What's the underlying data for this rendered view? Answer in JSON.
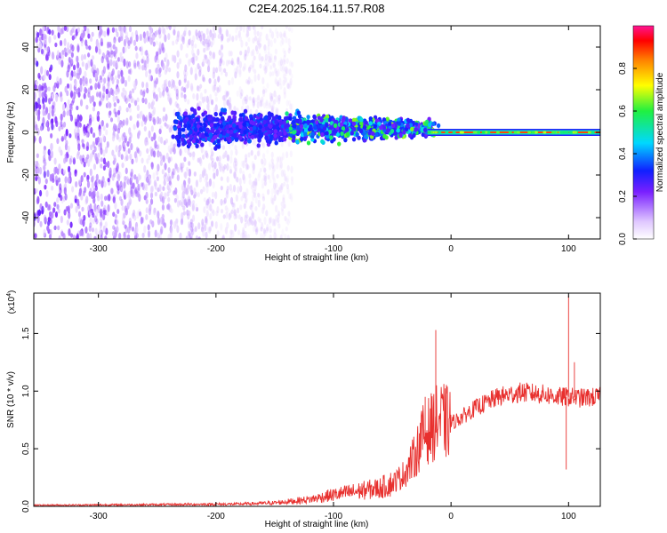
{
  "title": "C2E4.2025.164.11.57.R08",
  "colors": {
    "snr_line": "#e8302e",
    "background": "#ffffff"
  },
  "chart_data": [
    {
      "type": "heatmap",
      "xlabel": "Height of straight line (km)",
      "ylabel": "Frequency (Hz)",
      "xlim": [
        -355,
        127
      ],
      "ylim": [
        -50,
        50
      ],
      "x_ticks": [
        -300,
        -200,
        -100,
        0,
        100
      ],
      "x_tick_labels": [
        "-300",
        "-200",
        "-100",
        "0",
        "100"
      ],
      "y_ticks": [
        -40,
        -20,
        0,
        20,
        40
      ],
      "y_tick_labels": [
        "-40",
        "-20",
        "0",
        "20",
        "40"
      ],
      "colorbar": {
        "label": "Normalized spectral amplitude",
        "range": [
          0,
          1
        ],
        "ticks": [
          0.0,
          0.2,
          0.4,
          0.6,
          0.8
        ],
        "tick_labels": [
          "0.0",
          "0.2",
          "0.4",
          "0.6",
          "0.8"
        ]
      },
      "features": {
        "noise_region_x": [
          -355,
          -135
        ],
        "band_x": [
          -230,
          -20
        ],
        "line_x": [
          -20,
          127
        ],
        "line_frequency": 0
      }
    },
    {
      "type": "line",
      "xlabel": "Height of straight line (km)",
      "ylabel": "SNR (10 * v/v)",
      "y_multiplier": "(x10",
      "y_multiplier_exponent": "4",
      "y_multiplier_close": ")",
      "xlim": [
        -355,
        127
      ],
      "ylim": [
        0,
        1.85
      ],
      "x_ticks": [
        -300,
        -200,
        -100,
        0,
        100
      ],
      "x_tick_labels": [
        "-300",
        "-200",
        "-100",
        "0",
        "100"
      ],
      "y_ticks": [
        0,
        0.5,
        1.0,
        1.5
      ],
      "y_tick_labels": [
        "0.0",
        "0.5",
        "1.0",
        "1.5"
      ],
      "series": [
        {
          "envelope_x": [
            -355,
            -250,
            -180,
            -150,
            -120,
            -100,
            -80,
            -60,
            -50,
            -40,
            -30,
            -25,
            -20,
            -15,
            -10,
            0,
            10,
            20,
            30,
            40,
            50,
            60,
            70,
            80,
            90,
            100,
            110,
            127
          ],
          "envelope_y": [
            0.01,
            0.015,
            0.02,
            0.03,
            0.06,
            0.1,
            0.13,
            0.16,
            0.2,
            0.28,
            0.45,
            0.6,
            0.65,
            0.7,
            0.75,
            0.72,
            0.78,
            0.85,
            0.9,
            0.95,
            0.97,
            0.99,
            0.98,
            0.97,
            0.95,
            0.95,
            0.94,
            0.95
          ],
          "spikes": [
            {
              "x": -13,
              "y": 1.53
            },
            {
              "x": -22,
              "y": 0.95
            },
            {
              "x": 100,
              "y": 1.83
            },
            {
              "x": 105,
              "y": 1.25
            },
            {
              "x": 98,
              "y": 0.32
            }
          ]
        }
      ]
    }
  ]
}
